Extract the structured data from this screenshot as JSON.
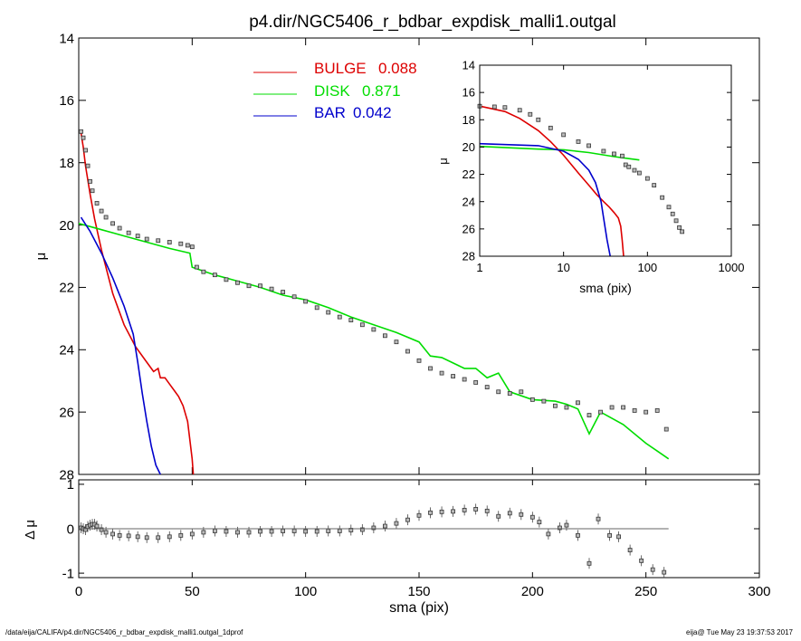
{
  "title": "p4.dir/NGC5406_r_bdbar_expdisk_malli1.outgal",
  "footer": {
    "path": "/data/eija/CALIFA/p4.dir/NGC5406_r_bdbar_expdisk_malli1.outgal_1dprof",
    "stamp": "eija@  Tue May 23 19:37:53 2017"
  },
  "colors": {
    "bulge": "#dd0000",
    "disk": "#00dd00",
    "bar": "#0000cc",
    "data": "#555555"
  },
  "chart_data": [
    {
      "type": "line",
      "title": "p4.dir/NGC5406_r_bdbar_expdisk_malli1.outgal",
      "xlabel": "",
      "ylabel": "μ",
      "xlim": [
        0,
        300
      ],
      "ylim": [
        28,
        14
      ],
      "y_reversed": true,
      "xticks": [
        0,
        50,
        100,
        150,
        200,
        250,
        300
      ],
      "yticks": [
        14,
        16,
        18,
        20,
        22,
        24,
        26,
        28
      ],
      "legend": [
        {
          "label": "BULGE",
          "value": "0.088",
          "color": "#dd0000"
        },
        {
          "label": "DISK",
          "value": "0.871",
          "color": "#00dd00"
        },
        {
          "label": "BAR",
          "value": "0.042",
          "color": "#0000cc"
        }
      ],
      "series": [
        {
          "name": "BULGE",
          "x": [
            1,
            2,
            3,
            5,
            7,
            10,
            15,
            20,
            25,
            30,
            33,
            35,
            36,
            38,
            40,
            42,
            44,
            46,
            48,
            49,
            50,
            50.5
          ],
          "y": [
            17.05,
            17.5,
            18.1,
            19.0,
            19.8,
            20.8,
            22.2,
            23.2,
            23.9,
            24.4,
            24.7,
            24.6,
            24.9,
            24.9,
            25.1,
            25.3,
            25.5,
            25.8,
            26.3,
            26.9,
            27.5,
            28.0
          ]
        },
        {
          "name": "DISK",
          "x": [
            0,
            10,
            20,
            30,
            40,
            49,
            50,
            60,
            70,
            80,
            90,
            100,
            110,
            120,
            130,
            140,
            150,
            155,
            160,
            170,
            175,
            180,
            185,
            190,
            200,
            210,
            215,
            220,
            225,
            230,
            240,
            250,
            255,
            260
          ],
          "y": [
            19.95,
            20.15,
            20.35,
            20.55,
            20.75,
            20.9,
            21.35,
            21.6,
            21.8,
            22.0,
            22.25,
            22.4,
            22.65,
            22.95,
            23.2,
            23.45,
            23.75,
            24.2,
            24.25,
            24.6,
            24.6,
            24.9,
            24.75,
            25.35,
            25.6,
            25.65,
            25.75,
            25.9,
            26.7,
            26.0,
            26.4,
            27.0,
            27.25,
            27.5
          ]
        },
        {
          "name": "BAR",
          "x": [
            1,
            5,
            10,
            15,
            20,
            24,
            26,
            28,
            30,
            32,
            34,
            36
          ],
          "y": [
            19.75,
            20.2,
            20.9,
            21.7,
            22.6,
            23.5,
            24.4,
            25.4,
            26.3,
            27.1,
            27.7,
            28.0
          ]
        },
        {
          "name": "",
          "x": [
            1,
            2,
            3,
            4,
            5,
            6,
            8,
            10,
            12,
            15,
            18,
            22,
            26,
            30,
            35,
            40,
            45,
            48,
            50,
            52,
            55,
            60,
            65,
            70,
            75,
            80,
            85,
            90,
            95,
            100,
            105,
            110,
            115,
            120,
            125,
            130,
            135,
            140,
            145,
            150,
            155,
            160,
            165,
            170,
            175,
            180,
            185,
            190,
            195,
            200,
            205,
            210,
            215,
            220,
            225,
            230,
            235,
            240,
            245,
            250,
            255,
            259
          ],
          "y": [
            17.0,
            17.2,
            17.6,
            18.1,
            18.6,
            18.9,
            19.3,
            19.55,
            19.75,
            19.95,
            20.1,
            20.25,
            20.35,
            20.45,
            20.5,
            20.55,
            20.6,
            20.65,
            20.7,
            21.35,
            21.5,
            21.6,
            21.75,
            21.85,
            21.95,
            21.95,
            22.05,
            22.15,
            22.3,
            22.45,
            22.65,
            22.8,
            22.95,
            23.05,
            23.2,
            23.35,
            23.55,
            23.75,
            24.05,
            24.35,
            24.6,
            24.75,
            24.85,
            24.95,
            25.05,
            25.2,
            25.35,
            25.4,
            25.35,
            25.6,
            25.65,
            25.8,
            25.85,
            25.7,
            26.1,
            26.0,
            25.85,
            25.85,
            25.95,
            26.0,
            25.95,
            26.55
          ]
        }
      ]
    },
    {
      "type": "line",
      "title": "",
      "xlabel": "sma (pix)",
      "ylabel": "Δ μ",
      "xlim": [
        0,
        300
      ],
      "ylim": [
        -1.1,
        1.1
      ],
      "xticks": [
        0,
        50,
        100,
        150,
        200,
        250,
        300
      ],
      "yticks": [
        -1,
        0,
        1
      ],
      "series": [
        {
          "name": "",
          "x": [
            1,
            2,
            3,
            4,
            5,
            6,
            7,
            8,
            10,
            12,
            15,
            18,
            22,
            26,
            30,
            35,
            40,
            45,
            50,
            55,
            60,
            65,
            70,
            75,
            80,
            85,
            90,
            95,
            100,
            105,
            110,
            115,
            120,
            125,
            130,
            135,
            140,
            145,
            150,
            155,
            160,
            165,
            170,
            175,
            180,
            185,
            190,
            195,
            200,
            203,
            207,
            212,
            215,
            220,
            225,
            229,
            234,
            238,
            243,
            248,
            253,
            258
          ],
          "y": [
            0.02,
            0.0,
            -0.02,
            0.05,
            0.08,
            0.1,
            0.1,
            0.06,
            -0.02,
            -0.08,
            -0.12,
            -0.15,
            -0.16,
            -0.18,
            -0.2,
            -0.2,
            -0.18,
            -0.15,
            -0.12,
            -0.08,
            -0.05,
            -0.06,
            -0.08,
            -0.08,
            -0.06,
            -0.06,
            -0.05,
            -0.05,
            -0.06,
            -0.06,
            -0.05,
            -0.05,
            -0.03,
            -0.02,
            0.02,
            0.06,
            0.12,
            0.2,
            0.3,
            0.36,
            0.38,
            0.39,
            0.42,
            0.44,
            0.4,
            0.28,
            0.35,
            0.32,
            0.26,
            0.15,
            -0.12,
            0.02,
            0.08,
            -0.15,
            -0.78,
            0.22,
            -0.15,
            -0.18,
            -0.48,
            -0.72,
            -0.92,
            -0.98
          ]
        },
        {
          "name": "",
          "x": [
            0,
            260
          ],
          "y": [
            0,
            0
          ]
        }
      ]
    },
    {
      "type": "line",
      "title": "",
      "xlabel": "sma (pix)",
      "ylabel": "μ",
      "xscale": "log",
      "xlim": [
        1,
        1000
      ],
      "ylim": [
        28,
        14
      ],
      "y_reversed": true,
      "xticks": [
        1,
        10,
        100,
        1000
      ],
      "yticks": [
        14,
        16,
        18,
        20,
        22,
        24,
        26,
        28
      ],
      "series": [
        {
          "name": "BULGE",
          "x": [
            1,
            2,
            3,
            5,
            7,
            10,
            15,
            20,
            25,
            30,
            35,
            40,
            45,
            48,
            50,
            52
          ],
          "y": [
            17.0,
            17.4,
            17.9,
            18.8,
            19.6,
            20.6,
            21.9,
            22.8,
            23.5,
            24.0,
            24.4,
            24.8,
            25.2,
            25.8,
            26.8,
            28.0
          ]
        },
        {
          "name": "DISK",
          "x": [
            1,
            5,
            10,
            20,
            40,
            60,
            80
          ],
          "y": [
            19.95,
            20.15,
            20.2,
            20.4,
            20.7,
            20.85,
            20.95
          ]
        },
        {
          "name": "BAR",
          "x": [
            1,
            5,
            10,
            15,
            20,
            24,
            28,
            30,
            33,
            36
          ],
          "y": [
            19.75,
            19.9,
            20.3,
            20.9,
            21.7,
            22.6,
            24.0,
            25.2,
            26.8,
            28.0
          ]
        },
        {
          "name": "",
          "x": [
            1,
            1.5,
            2,
            3,
            4,
            5,
            7,
            10,
            15,
            20,
            30,
            40,
            50,
            55,
            60,
            70,
            80,
            100,
            120,
            150,
            180,
            200,
            220,
            240,
            259
          ],
          "y": [
            17.0,
            17.05,
            17.1,
            17.3,
            17.6,
            18.0,
            18.6,
            19.1,
            19.6,
            19.9,
            20.3,
            20.5,
            20.65,
            21.3,
            21.45,
            21.7,
            21.9,
            22.3,
            22.8,
            23.7,
            24.4,
            24.9,
            25.4,
            25.9,
            26.2
          ]
        }
      ]
    }
  ]
}
